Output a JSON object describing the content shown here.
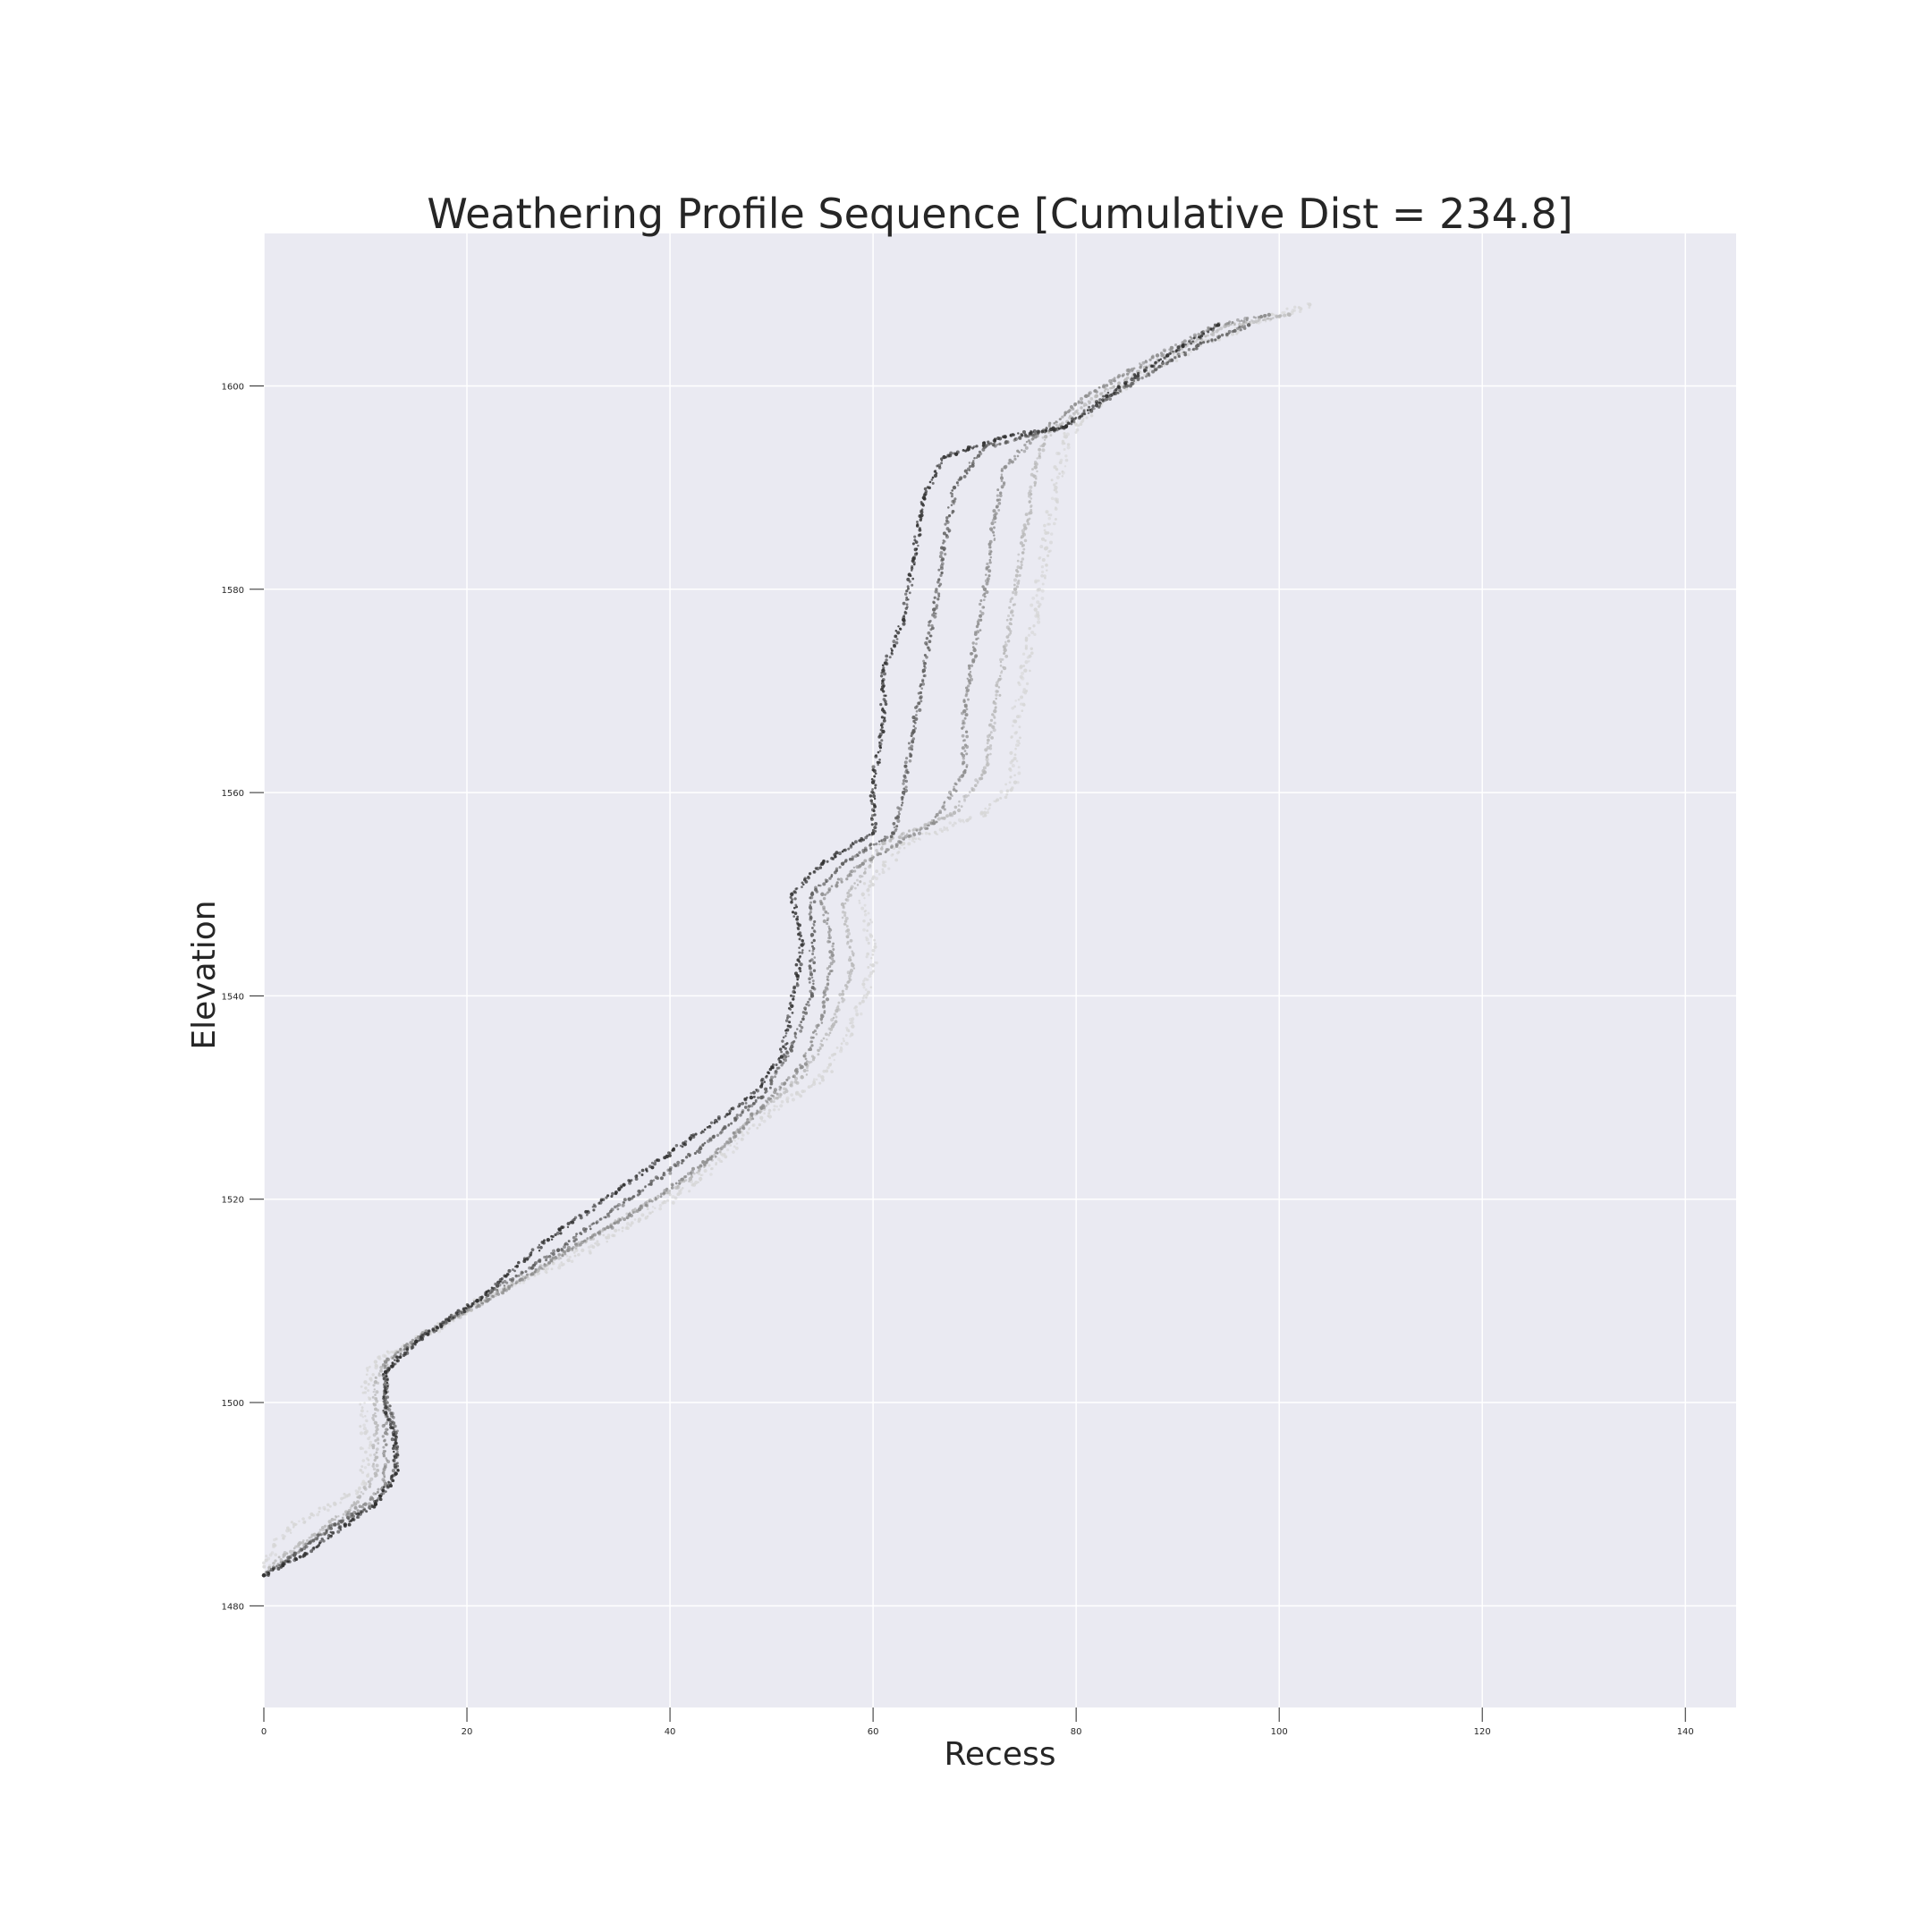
{
  "chart_data": {
    "type": "scatter",
    "title": "Weathering Profile Sequence [Cumulative Dist = 234.8]",
    "xlabel": "Recess",
    "ylabel": "Elevation",
    "xlim": [
      0,
      145
    ],
    "ylim": [
      1470,
      1615
    ],
    "x_ticks": [
      0,
      20,
      40,
      60,
      80,
      100,
      120,
      140
    ],
    "y_ticks": [
      1480,
      1500,
      1520,
      1540,
      1560,
      1580,
      1600
    ],
    "grid": true,
    "background_color": "#eaeaf2",
    "grid_color": "#ffffff",
    "series": [
      {
        "color": "#d6d6d6",
        "points": [
          [
            0,
            1483
          ],
          [
            1,
            1486
          ],
          [
            3,
            1488
          ],
          [
            7,
            1490
          ],
          [
            10,
            1492
          ],
          [
            10,
            1497
          ],
          [
            10,
            1502
          ],
          [
            11,
            1504
          ],
          [
            13,
            1505
          ],
          [
            18,
            1508
          ],
          [
            23,
            1511
          ],
          [
            30,
            1514
          ],
          [
            37,
            1518
          ],
          [
            43,
            1522
          ],
          [
            49,
            1528
          ],
          [
            55,
            1532
          ],
          [
            58,
            1537
          ],
          [
            60,
            1543
          ],
          [
            59,
            1550
          ],
          [
            63,
            1555
          ],
          [
            71,
            1558
          ],
          [
            74,
            1561
          ],
          [
            74,
            1567
          ],
          [
            75,
            1572
          ],
          [
            76,
            1578
          ],
          [
            77,
            1584
          ],
          [
            78,
            1590
          ],
          [
            79,
            1595
          ],
          [
            83,
            1599
          ],
          [
            90,
            1603
          ],
          [
            97,
            1606
          ],
          [
            103,
            1608
          ]
        ]
      },
      {
        "color": "#b8b8b8",
        "points": [
          [
            0,
            1483
          ],
          [
            2,
            1485
          ],
          [
            5,
            1487
          ],
          [
            9,
            1490
          ],
          [
            11,
            1493
          ],
          [
            11,
            1498
          ],
          [
            11,
            1502
          ],
          [
            12,
            1504
          ],
          [
            15,
            1506
          ],
          [
            20,
            1509
          ],
          [
            27,
            1513
          ],
          [
            35,
            1518
          ],
          [
            42,
            1522
          ],
          [
            48,
            1528
          ],
          [
            53,
            1532
          ],
          [
            56,
            1537
          ],
          [
            58,
            1543
          ],
          [
            57,
            1549
          ],
          [
            61,
            1555
          ],
          [
            68,
            1558
          ],
          [
            71,
            1562
          ],
          [
            72,
            1568
          ],
          [
            73,
            1574
          ],
          [
            74,
            1580
          ],
          [
            75,
            1586
          ],
          [
            76,
            1592
          ],
          [
            77,
            1595
          ],
          [
            82,
            1599
          ],
          [
            89,
            1603
          ],
          [
            95,
            1606
          ],
          [
            101,
            1607
          ]
        ]
      },
      {
        "color": "#8c8c8c",
        "points": [
          [
            0,
            1483
          ],
          [
            3,
            1485
          ],
          [
            7,
            1488
          ],
          [
            10,
            1490
          ],
          [
            12,
            1492
          ],
          [
            12,
            1497
          ],
          [
            12,
            1502
          ],
          [
            12,
            1504
          ],
          [
            16,
            1507
          ],
          [
            22,
            1510
          ],
          [
            30,
            1515
          ],
          [
            37,
            1519
          ],
          [
            44,
            1524
          ],
          [
            49,
            1529
          ],
          [
            53,
            1533
          ],
          [
            55,
            1538
          ],
          [
            56,
            1544
          ],
          [
            55,
            1550
          ],
          [
            59,
            1553
          ],
          [
            66,
            1557
          ],
          [
            69,
            1562
          ],
          [
            69,
            1568
          ],
          [
            70,
            1574
          ],
          [
            71,
            1580
          ],
          [
            72,
            1587
          ],
          [
            73,
            1592
          ],
          [
            76,
            1595
          ],
          [
            81,
            1599
          ],
          [
            88,
            1603
          ],
          [
            94,
            1606
          ],
          [
            99,
            1607
          ]
        ]
      },
      {
        "color": "#5e5e5e",
        "points": [
          [
            0,
            1483
          ],
          [
            3,
            1485
          ],
          [
            7,
            1488
          ],
          [
            11,
            1490
          ],
          [
            13,
            1493
          ],
          [
            13,
            1497
          ],
          [
            12,
            1501
          ],
          [
            12,
            1503
          ],
          [
            15,
            1506
          ],
          [
            21,
            1510
          ],
          [
            29,
            1515
          ],
          [
            36,
            1520
          ],
          [
            43,
            1525
          ],
          [
            49,
            1530
          ],
          [
            52,
            1535
          ],
          [
            54,
            1540
          ],
          [
            54,
            1546
          ],
          [
            54,
            1550
          ],
          [
            57,
            1553
          ],
          [
            62,
            1556
          ],
          [
            63,
            1560
          ],
          [
            64,
            1566
          ],
          [
            65,
            1572
          ],
          [
            66,
            1578
          ],
          [
            67,
            1584
          ],
          [
            68,
            1590
          ],
          [
            71,
            1594
          ],
          [
            79,
            1596
          ],
          [
            85,
            1600
          ],
          [
            92,
            1604
          ],
          [
            97,
            1606
          ]
        ]
      },
      {
        "color": "#2f2f2f",
        "points": [
          [
            0,
            1483
          ],
          [
            4,
            1485
          ],
          [
            8,
            1488
          ],
          [
            11,
            1490
          ],
          [
            13,
            1493
          ],
          [
            13,
            1496
          ],
          [
            12,
            1499
          ],
          [
            12,
            1503
          ],
          [
            15,
            1506
          ],
          [
            21,
            1510
          ],
          [
            28,
            1516
          ],
          [
            35,
            1521
          ],
          [
            42,
            1526
          ],
          [
            48,
            1530
          ],
          [
            51,
            1534
          ],
          [
            52,
            1539
          ],
          [
            53,
            1545
          ],
          [
            52,
            1550
          ],
          [
            55,
            1553
          ],
          [
            60,
            1556
          ],
          [
            60,
            1561
          ],
          [
            61,
            1566
          ],
          [
            61,
            1572
          ],
          [
            63,
            1577
          ],
          [
            64,
            1583
          ],
          [
            65,
            1589
          ],
          [
            67,
            1593
          ],
          [
            73,
            1595
          ],
          [
            79,
            1596
          ],
          [
            83,
            1599
          ],
          [
            89,
            1603
          ],
          [
            94,
            1606
          ]
        ]
      }
    ]
  }
}
